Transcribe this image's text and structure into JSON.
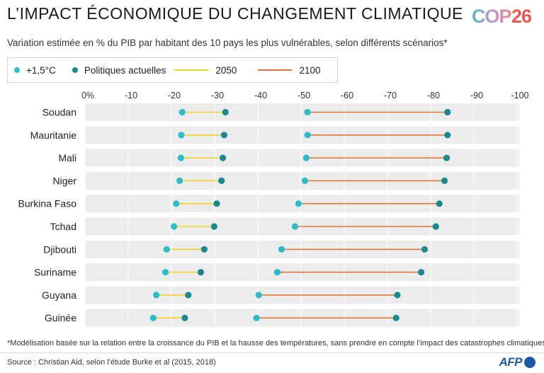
{
  "header": {
    "title": "L’IMPACT ÉCONOMIQUE DU CHANGEMENT CLIMATIQUE",
    "logo_text": "COP 26",
    "subtitle": "Variation estimée en % du PIB par habitant des 10 pays les plus vulnérables, selon différents scénarios*"
  },
  "legend": {
    "items": [
      {
        "label": "+1,5°C",
        "kind": "dot",
        "color": "#2cbdc9"
      },
      {
        "label": "Politiques actuelles",
        "kind": "dot",
        "color": "#1a8a8f"
      },
      {
        "label": "2050",
        "kind": "line",
        "color": "#f2d32a"
      },
      {
        "label": "2100",
        "kind": "line",
        "color": "#e0783c"
      }
    ]
  },
  "chart_data": {
    "type": "dumbbell",
    "x_axis": {
      "ticks": [
        0,
        -10,
        -20,
        -30,
        -40,
        -50,
        -60,
        -70,
        -80,
        -90,
        -100
      ],
      "tick_labels": [
        "0%",
        "-10",
        "-20",
        "-30",
        "-40",
        "-50",
        "-60",
        "-70",
        "-80",
        "-90",
        "-100"
      ],
      "range": [
        0,
        -100
      ]
    },
    "categories": [
      "Soudan",
      "Mauritanie",
      "Mali",
      "Niger",
      "Burkina Faso",
      "Tchad",
      "Djibouti",
      "Suriname",
      "Guyana",
      "Guinée"
    ],
    "series": [
      {
        "name": "+1,5°C 2050",
        "values": [
          -22.5,
          -22.3,
          -22.2,
          -21.9,
          -21.1,
          -20.6,
          -18.9,
          -18.6,
          -16.5,
          -15.8
        ]
      },
      {
        "name": "Politiques actuelles 2050",
        "values": [
          -32.5,
          -32.2,
          -31.9,
          -31.6,
          -30.5,
          -29.9,
          -27.6,
          -26.8,
          -23.9,
          -23.1
        ]
      },
      {
        "name": "+1,5°C 2100",
        "values": [
          -51.5,
          -51.5,
          -51.2,
          -50.9,
          -49.4,
          -48.6,
          -45.5,
          -44.5,
          -40.2,
          -39.7
        ]
      },
      {
        "name": "Politiques actuelles 2100",
        "values": [
          -83.9,
          -83.9,
          -83.7,
          -83.2,
          -82.0,
          -81.2,
          -78.6,
          -77.8,
          -72.3,
          -72.0
        ]
      }
    ],
    "colors": {
      "dot_15": "#2cbdc9",
      "dot_current": "#1a8a8f",
      "line_2050": "#f2d32a",
      "line_2100": "#e0783c",
      "band": "#ececec",
      "grid": "#ffffff"
    }
  },
  "footer": {
    "footnote": "*Modélisation basée sur la relation entre la croissance du PIB et la hausse des températures, sans prendre en compte l’impact des catastrophes climatiques",
    "source": "Source : Christian Aid, selon l’étude Burke et al (2015, 2018)",
    "agency": "AFP"
  }
}
